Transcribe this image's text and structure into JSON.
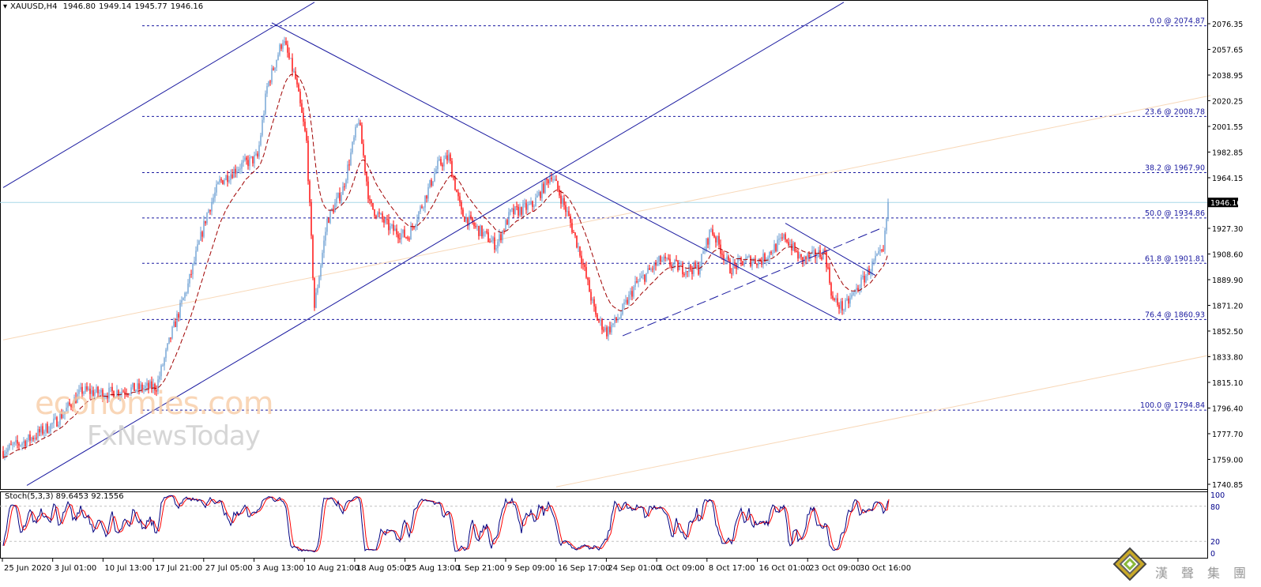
{
  "header": {
    "symbol": "XAUUSD,H4",
    "open": "1946.80",
    "high": "1949.14",
    "low": "1945.77",
    "close": "1946.16"
  },
  "indicator": {
    "name": "Stoch(5,3,3)",
    "main": "89.6453",
    "signal": "92.1556",
    "levels": [
      "100",
      "80",
      "20",
      "0"
    ]
  },
  "watermark": {
    "line1": "economies.com",
    "line2": "FxNewsToday"
  },
  "logo": {
    "text": "漢聲集團"
  },
  "colors": {
    "up": "#6d9fd3",
    "down": "#ff0000",
    "ma": "#a00000",
    "trend": "#1a1aa0",
    "fib": "#1a1aa0",
    "channel_thin": "#f8d8b8",
    "current_price": "#a8d8e8",
    "stoch_main": "#000080",
    "stoch_signal": "#ff0000"
  },
  "chart_data": {
    "type": "candlestick",
    "symbol": "XAUUSD",
    "timeframe": "H4",
    "ylim": [
      1740.85,
      2076.35
    ],
    "y_ticks": [
      "2076.35",
      "2057.65",
      "2038.95",
      "2020.25",
      "2001.55",
      "1982.85",
      "1964.15",
      "1946.16",
      "1927.30",
      "1908.60",
      "1889.90",
      "1871.20",
      "1852.50",
      "1833.80",
      "1815.10",
      "1796.40",
      "1777.70",
      "1759.00",
      "1740.85"
    ],
    "current_price": "1946.16",
    "x_ticks": [
      "25 Jun 2020",
      "3 Jul 01:00",
      "10 Jul 13:00",
      "17 Jul 21:00",
      "27 Jul 05:00",
      "3 Aug 13:00",
      "10 Aug 21:00",
      "18 Aug 05:00",
      "25 Aug 13:00",
      "1 Sep 21:00",
      "9 Sep 09:00",
      "16 Sep 17:00",
      "24 Sep 01:00",
      "1 Oct 09:00",
      "8 Oct 17:00",
      "16 Oct 01:00",
      "23 Oct 09:00",
      "30 Oct 16:00"
    ],
    "price_anchors": [
      {
        "bar": 0,
        "close": 1765
      },
      {
        "bar": 17,
        "close": 1774
      },
      {
        "bar": 33,
        "close": 1786
      },
      {
        "bar": 50,
        "close": 1809
      },
      {
        "bar": 65,
        "close": 1807
      },
      {
        "bar": 80,
        "close": 1810
      },
      {
        "bar": 97,
        "close": 1812
      },
      {
        "bar": 107,
        "close": 1852
      },
      {
        "bar": 117,
        "close": 1886
      },
      {
        "bar": 129,
        "close": 1938
      },
      {
        "bar": 137,
        "close": 1961
      },
      {
        "bar": 150,
        "close": 1973
      },
      {
        "bar": 161,
        "close": 1979
      },
      {
        "bar": 167,
        "close": 2030
      },
      {
        "bar": 177,
        "close": 2065
      },
      {
        "bar": 185,
        "close": 2036
      },
      {
        "bar": 192,
        "close": 1990
      },
      {
        "bar": 197,
        "close": 1870
      },
      {
        "bar": 205,
        "close": 1933
      },
      {
        "bar": 215,
        "close": 1956
      },
      {
        "bar": 225,
        "close": 2007
      },
      {
        "bar": 232,
        "close": 1944
      },
      {
        "bar": 245,
        "close": 1927
      },
      {
        "bar": 256,
        "close": 1921
      },
      {
        "bar": 265,
        "close": 1944
      },
      {
        "bar": 275,
        "close": 1973
      },
      {
        "bar": 282,
        "close": 1979
      },
      {
        "bar": 290,
        "close": 1938
      },
      {
        "bar": 300,
        "close": 1927
      },
      {
        "bar": 312,
        "close": 1915
      },
      {
        "bar": 321,
        "close": 1938
      },
      {
        "bar": 335,
        "close": 1944
      },
      {
        "bar": 347,
        "close": 1967
      },
      {
        "bar": 357,
        "close": 1938
      },
      {
        "bar": 365,
        "close": 1910
      },
      {
        "bar": 375,
        "close": 1863
      },
      {
        "bar": 382,
        "close": 1852
      },
      {
        "bar": 390,
        "close": 1863
      },
      {
        "bar": 400,
        "close": 1886
      },
      {
        "bar": 416,
        "close": 1904
      },
      {
        "bar": 430,
        "close": 1898
      },
      {
        "bar": 440,
        "close": 1898
      },
      {
        "bar": 448,
        "close": 1927
      },
      {
        "bar": 460,
        "close": 1898
      },
      {
        "bar": 470,
        "close": 1904
      },
      {
        "bar": 480,
        "close": 1904
      },
      {
        "bar": 495,
        "close": 1921
      },
      {
        "bar": 505,
        "close": 1904
      },
      {
        "bar": 520,
        "close": 1910
      },
      {
        "bar": 525,
        "close": 1875
      },
      {
        "bar": 532,
        "close": 1869
      },
      {
        "bar": 542,
        "close": 1886
      },
      {
        "bar": 552,
        "close": 1904
      },
      {
        "bar": 557,
        "close": 1910
      },
      {
        "bar": 560,
        "close": 1946.16
      }
    ],
    "moving_average": {
      "style": "dashed",
      "period": 20
    },
    "fibonacci": [
      {
        "label": "0.0 @ 2074.87",
        "price": 2074.87
      },
      {
        "label": "23.6 @ 2008.78",
        "price": 2008.78
      },
      {
        "label": "38.2 @ 1967.90",
        "price": 1967.9
      },
      {
        "label": "50.0 @ 1934.86",
        "price": 1934.86
      },
      {
        "label": "61.8 @ 1901.81",
        "price": 1901.81
      },
      {
        "label": "76.4 @ 1860.93",
        "price": 1860.93
      },
      {
        "label": "100.0 @ 1794.84",
        "price": 1794.84
      }
    ],
    "trendlines": [
      {
        "from": [
          0,
          1957
        ],
        "to": [
          197,
          2092
        ],
        "style": "solid",
        "color": "trend"
      },
      {
        "from": [
          15,
          1740
        ],
        "to": [
          532,
          2092
        ],
        "style": "solid",
        "color": "trend"
      },
      {
        "from": [
          170,
          2077
        ],
        "to": [
          530,
          1860
        ],
        "style": "solid",
        "color": "trend"
      },
      {
        "from": [
          392,
          1849
        ],
        "to": [
          557,
          1928
        ],
        "style": "dashed",
        "color": "trend"
      },
      {
        "from": [
          495,
          1931
        ],
        "to": [
          552,
          1893
        ],
        "style": "solid",
        "color": "trend"
      },
      {
        "from": [
          0,
          1846
        ],
        "to": [
          764,
          2024
        ],
        "style": "solid",
        "color": "channel_thin"
      },
      {
        "from": [
          350,
          1739
        ],
        "to": [
          764,
          1835
        ],
        "style": "solid",
        "color": "channel_thin"
      }
    ]
  }
}
